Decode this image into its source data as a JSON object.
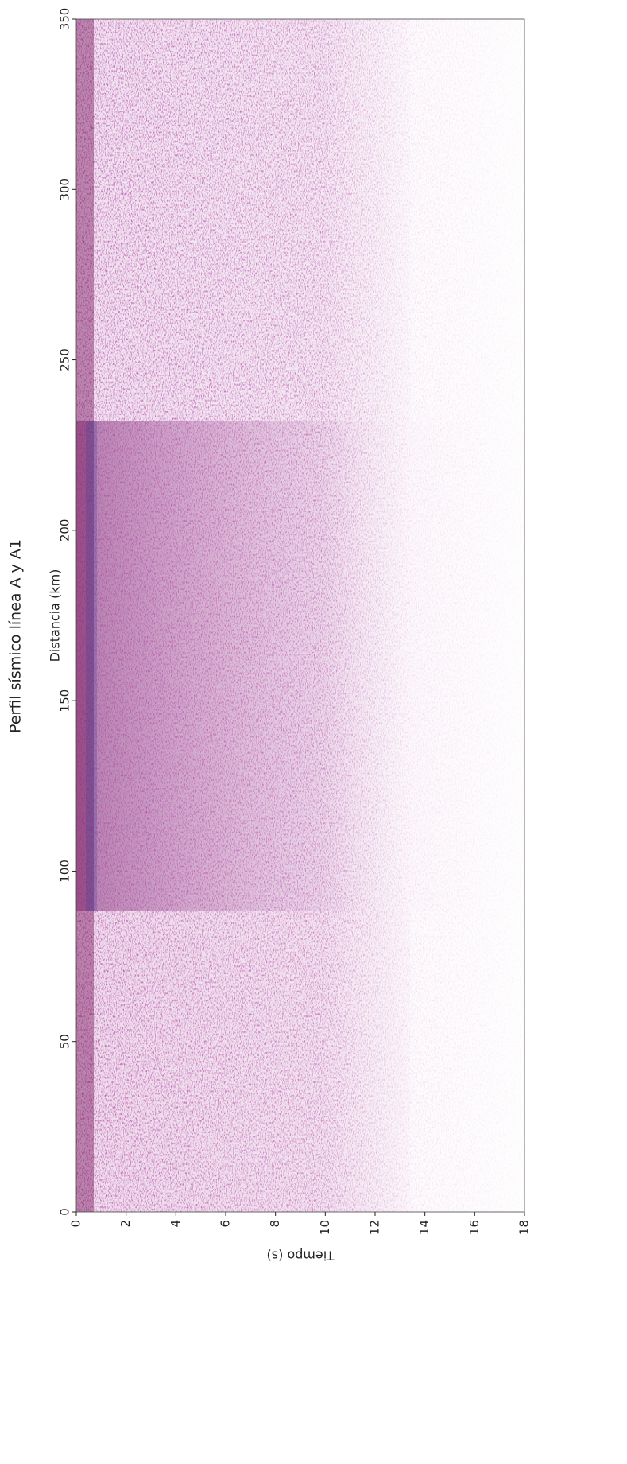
{
  "chart_data": {
    "type": "image",
    "title": "Perfil sísmico línea A y A1",
    "xlabel": "Distancia (km)",
    "ylabel": "Tiempo (s)",
    "xlim": [
      0,
      350
    ],
    "xticks": [
      0,
      50,
      100,
      150,
      200,
      250,
      300,
      350
    ],
    "ylim": [
      0,
      18
    ],
    "yticks": [
      0,
      2,
      4,
      6,
      8,
      10,
      12,
      14,
      16,
      18
    ],
    "colormap": "seismic"
  }
}
